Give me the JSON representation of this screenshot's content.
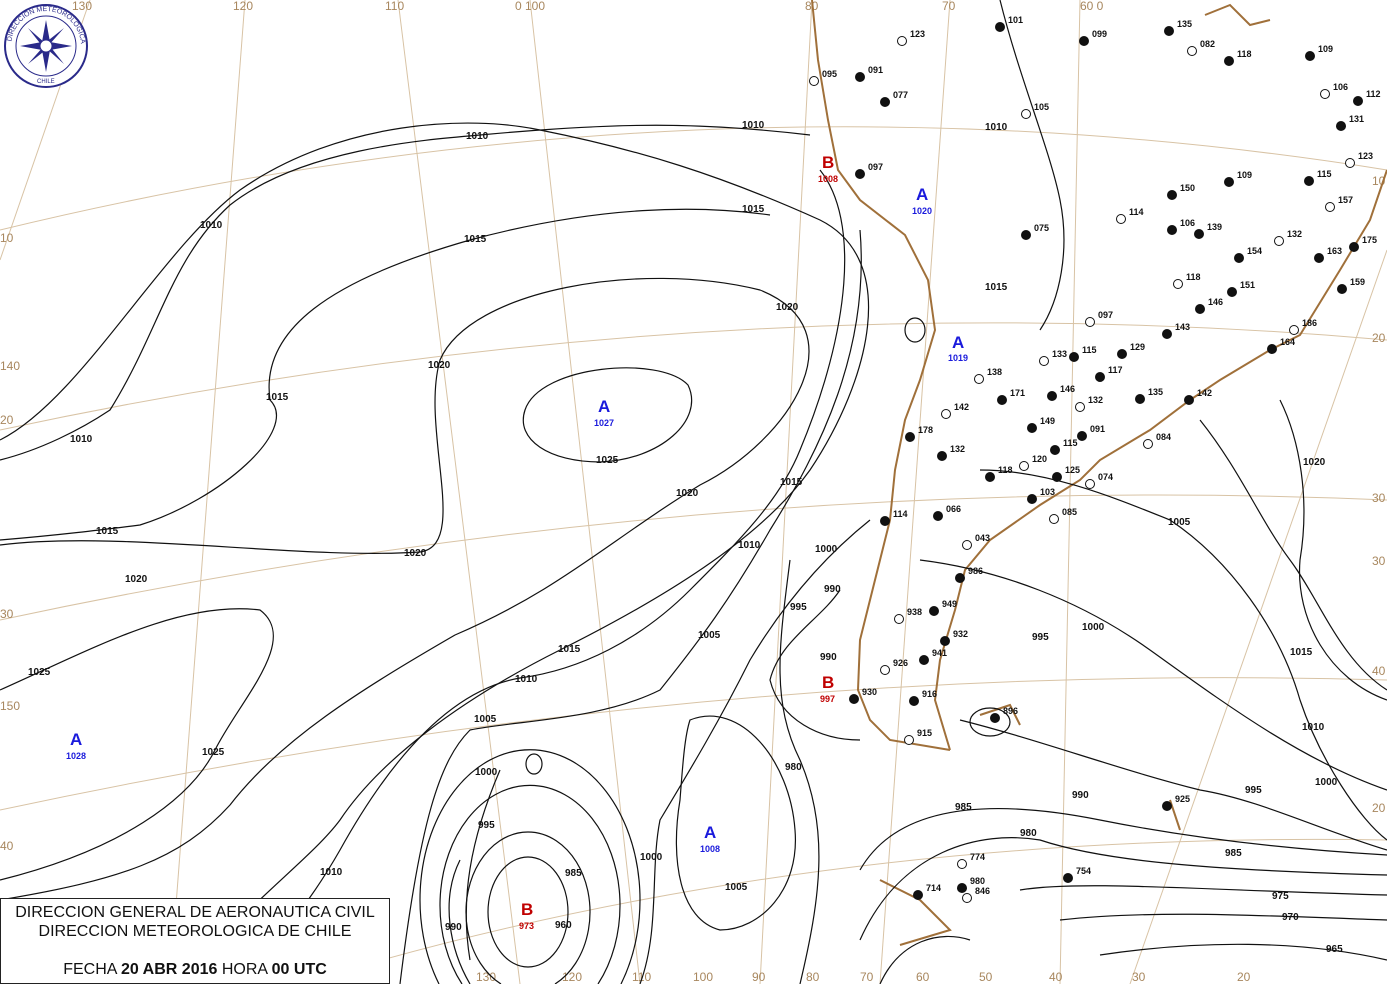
{
  "map": {
    "type": "surface synoptic analysis",
    "logo_text": "DIRECCION METEOROLOGICA CHILE",
    "colors": {
      "high": "#1a1adc",
      "low": "#c00000",
      "coast": "#a0703a",
      "graticule": "#d8c3a5",
      "isobar": "#111111"
    },
    "lon_labels_top": [
      "130",
      "120",
      "110",
      "0 100",
      "80",
      "70",
      "60 0"
    ],
    "lon_labels_bottom": [
      "130",
      "120",
      "110",
      "100",
      "90",
      "80",
      "70",
      "60",
      "50",
      "40",
      "30",
      "20"
    ],
    "lat_labels_left": [
      "10",
      "140",
      "20",
      "30",
      "150",
      "40"
    ],
    "lat_labels_right": [
      "10",
      "20",
      "30",
      "30",
      "40",
      "20"
    ],
    "pressure_centers": [
      {
        "type": "A",
        "value": "1027"
      },
      {
        "type": "A",
        "value": "1028"
      },
      {
        "type": "A",
        "value": "1008"
      },
      {
        "type": "A",
        "value": "1019"
      },
      {
        "type": "A",
        "value": "1020"
      },
      {
        "type": "B",
        "value": "1008"
      },
      {
        "type": "B",
        "value": "973"
      },
      {
        "type": "B",
        "value": "997"
      }
    ],
    "isobar_labels": [
      "1010",
      "1010",
      "1010",
      "1010",
      "1015",
      "1015",
      "1015",
      "1015",
      "1020",
      "1020",
      "1020",
      "1020",
      "1020",
      "1025",
      "1025",
      "1025",
      "1015",
      "1015",
      "1010",
      "1010",
      "1010",
      "1005",
      "1005",
      "1000",
      "1000",
      "995",
      "995",
      "990",
      "990",
      "985",
      "980",
      "960",
      "985",
      "990",
      "1000",
      "1005",
      "1010",
      "1015",
      "1020",
      "1005",
      "1000",
      "995",
      "990",
      "985",
      "980",
      "975",
      "970",
      "965",
      "1010",
      "1015",
      "1000",
      "995"
    ],
    "stations": [
      "123",
      "091",
      "077",
      "095",
      "097",
      "101",
      "105",
      "099",
      "135",
      "082",
      "118",
      "109",
      "106",
      "112",
      "131",
      "123",
      "109",
      "115",
      "157",
      "175",
      "159",
      "186",
      "164",
      "150",
      "114",
      "106",
      "139",
      "132",
      "154",
      "163",
      "118",
      "151",
      "146",
      "097",
      "143",
      "129",
      "133",
      "115",
      "117",
      "138",
      "171",
      "146",
      "132",
      "135",
      "142",
      "142",
      "149",
      "091",
      "084",
      "178",
      "132",
      "120",
      "115",
      "125",
      "074",
      "118",
      "103",
      "085",
      "114",
      "066",
      "043",
      "986",
      "949",
      "938",
      "932",
      "941",
      "926",
      "930",
      "916",
      "915",
      "896",
      "925",
      "774",
      "754",
      "714",
      "846",
      "980",
      "075"
    ]
  },
  "title_box": {
    "line1": "DIRECCION GENERAL DE AERONAUTICA CIVIL",
    "line2": "DIRECCION METEOROLOGICA DE CHILE",
    "date_prefix": "FECHA",
    "date": "20 ABR 2016",
    "hour_prefix": "HORA",
    "hour": "00 UTC"
  }
}
